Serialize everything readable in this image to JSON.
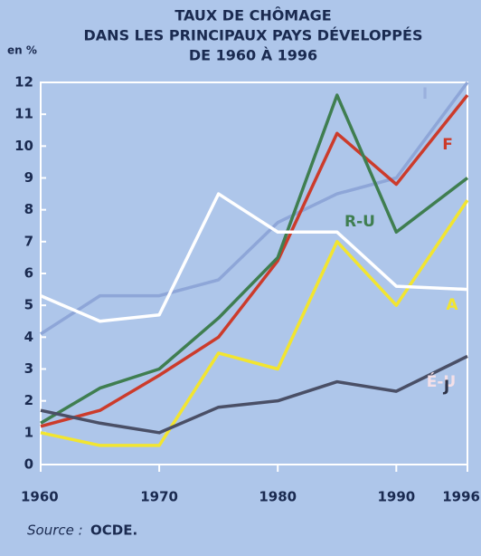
{
  "chart_data": {
    "type": "line",
    "title": [
      "TAUX DE CHÔMAGE",
      "DANS LES PRINCIPAUX PAYS DÉVELOPPÉS",
      "DE 1960 À 1996"
    ],
    "y_label": "en %",
    "source_label": "Source :",
    "source_value": "OCDE.",
    "x": [
      1960,
      1965,
      1970,
      1975,
      1980,
      1985,
      1990,
      1996
    ],
    "xlim": [
      1960,
      1996
    ],
    "xticks": [
      1960,
      1970,
      1980,
      1990,
      1996
    ],
    "ylim": [
      0,
      12
    ],
    "yticks": [
      0,
      1,
      2,
      3,
      4,
      5,
      6,
      7,
      8,
      9,
      10,
      11,
      12
    ],
    "series": [
      {
        "name": "I",
        "color": "#8ea6d8",
        "values": [
          4.1,
          5.3,
          5.3,
          5.8,
          7.6,
          8.5,
          9.0,
          12.0
        ]
      },
      {
        "name": "F",
        "color": "#cc3b2b",
        "values": [
          1.2,
          1.7,
          2.8,
          4.0,
          6.4,
          10.4,
          8.8,
          11.6
        ]
      },
      {
        "name": "R-U",
        "color": "#3f7e50",
        "values": [
          1.3,
          2.4,
          3.0,
          4.6,
          6.5,
          11.6,
          7.3,
          9.0
        ]
      },
      {
        "name": "A",
        "color": "#f2e530",
        "values": [
          1.0,
          0.6,
          0.6,
          3.5,
          3.0,
          7.0,
          5.0,
          8.3
        ]
      },
      {
        "name": "É-U",
        "color": "#ffffff",
        "values": [
          5.3,
          4.5,
          4.7,
          8.5,
          7.3,
          7.3,
          5.6,
          5.5
        ]
      },
      {
        "name": "J",
        "color": "#4a4f66",
        "values": [
          1.7,
          1.3,
          1.0,
          1.8,
          2.0,
          2.6,
          2.3,
          3.4
        ]
      }
    ]
  }
}
